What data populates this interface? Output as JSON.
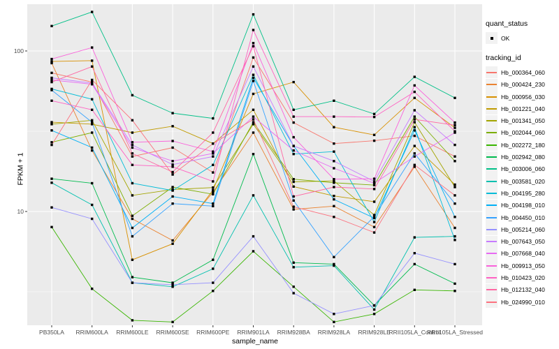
{
  "figure": {
    "background": "#FFFFFF",
    "panel_background": "#EBEBEB",
    "gridline_color": "#FFFFFF",
    "tick_color": "#333333",
    "tick_label_color": "#4D4D4D",
    "point_color": "#000000"
  },
  "axes": {
    "y_title": "FPKM + 1",
    "x_title": "sample_name",
    "y_tick_labels": [
      "100",
      "10"
    ]
  },
  "legend": {
    "quant_title": "quant_status",
    "quant_entries": [
      {
        "label": "OK",
        "symbol": "point-icon",
        "color": "#000000"
      }
    ],
    "tracking_title": "tracking_id"
  },
  "chart_data": {
    "type": "line",
    "title": "",
    "xlabel": "sample_name",
    "ylabel": "FPKM + 1",
    "y_scale": "log10",
    "ylim": [
      1.9,
      200
    ],
    "y_major_ticks": [
      10,
      100
    ],
    "y_minor_ticks": [
      3.162,
      31.623
    ],
    "grid": true,
    "legend_position": "right",
    "point_shape": "square",
    "point_color": "#000000",
    "categories": [
      "PB350LA",
      "RRIM600LA",
      "RRIM600LE",
      "RRIM600SE",
      "RRIM600PE",
      "RRIM901LA",
      "RRIM928BA",
      "RRIM928LA",
      "RRIM928LE",
      "RRII105LA_Control",
      "RRII105LA_Stressed"
    ],
    "series": [
      {
        "name": "Hb_000364_060",
        "color": "#F8766D",
        "values": [
          73,
          64,
          22,
          25,
          17.5,
          91,
          35.8,
          26.5,
          27.6,
          29.6,
          22
        ]
      },
      {
        "name": "Hb_000424_230",
        "color": "#EA8331",
        "values": [
          84,
          24,
          9.0,
          6.6,
          13.2,
          31,
          10.3,
          10.8,
          8.0,
          19,
          7.9
        ]
      },
      {
        "name": "Hb_000956_030",
        "color": "#D89000",
        "values": [
          86,
          87,
          5.0,
          6.3,
          13.6,
          54,
          64,
          33.5,
          30,
          51,
          33.2
        ]
      },
      {
        "name": "Hb_001221_040",
        "color": "#C09B00",
        "values": [
          36,
          35,
          31,
          34,
          26.5,
          43,
          14.3,
          12.5,
          11.5,
          25.6,
          14.7
        ]
      },
      {
        "name": "Hb_001341_050",
        "color": "#A3A500",
        "values": [
          35,
          37,
          12.6,
          13.7,
          14.1,
          35,
          15.3,
          15.5,
          9.5,
          36,
          14.2
        ]
      },
      {
        "name": "Hb_002044_060",
        "color": "#7CAE00",
        "values": [
          27,
          31,
          9.4,
          14.2,
          12.8,
          36,
          15.9,
          15.1,
          14.6,
          39,
          20.6
        ]
      },
      {
        "name": "Hb_002272_180",
        "color": "#39B600",
        "values": [
          8,
          3.3,
          2.1,
          2.05,
          3.2,
          5.65,
          3.4,
          2.05,
          2.3,
          3.25,
          3.2
        ]
      },
      {
        "name": "Hb_002942_080",
        "color": "#00BB4E",
        "values": [
          16,
          15,
          3.9,
          3.6,
          5.0,
          22.8,
          4.8,
          4.7,
          2.6,
          4.7,
          3.55
        ]
      },
      {
        "name": "Hb_003006_060",
        "color": "#00C087",
        "values": [
          143,
          175,
          53,
          41,
          38,
          169,
          43,
          49,
          40.5,
          69,
          51
        ]
      },
      {
        "name": "Hb_003581_020",
        "color": "#00C0AF",
        "values": [
          15.1,
          11,
          3.6,
          3.4,
          4.4,
          12.6,
          4.5,
          4.6,
          2.45,
          6.9,
          7.0
        ]
      },
      {
        "name": "Hb_004195_280",
        "color": "#00BCD8",
        "values": [
          58,
          50,
          15,
          13.5,
          19.5,
          71,
          22.8,
          23.6,
          8.6,
          33.5,
          6.65
        ]
      },
      {
        "name": "Hb_004198_010",
        "color": "#00B0F6",
        "values": [
          32,
          25,
          7.9,
          12.4,
          11.2,
          68,
          25.6,
          11.9,
          9.1,
          32,
          9.25
        ]
      },
      {
        "name": "Hb_004450_010",
        "color": "#35A2FF",
        "values": [
          57,
          36,
          7.0,
          11.2,
          10.8,
          65,
          11.7,
          5.2,
          9.3,
          23,
          11.2
        ]
      },
      {
        "name": "Hb_005214_060",
        "color": "#9590FF",
        "values": [
          10.6,
          9,
          3.6,
          3.5,
          3.6,
          7.0,
          3.1,
          2.3,
          2.6,
          5.5,
          4.7
        ]
      },
      {
        "name": "Hb_007643_050",
        "color": "#C77CFF",
        "values": [
          68,
          63,
          26,
          19.6,
          22,
          80,
          25.6,
          20.6,
          15.4,
          42.7,
          26
        ]
      },
      {
        "name": "Hb_007668_040",
        "color": "#E76BF3",
        "values": [
          66,
          62,
          25,
          20.6,
          23,
          39,
          24,
          18.6,
          15,
          22,
          31
        ]
      },
      {
        "name": "Hb_009913_050",
        "color": "#FA62DB",
        "values": [
          89,
          105,
          27,
          27.5,
          23.6,
          112,
          29,
          15.9,
          16,
          61,
          35.8
        ]
      },
      {
        "name": "Hb_010423_020",
        "color": "#FF61C3",
        "values": [
          49,
          43,
          19.5,
          19,
          15.4,
          135,
          39,
          39,
          38.8,
          55.6,
          31.6
        ]
      },
      {
        "name": "Hb_012132_040",
        "color": "#FF67A4",
        "values": [
          64,
          80,
          23,
          17.6,
          31,
          107,
          12.4,
          14.2,
          13.8,
          37.5,
          34.5
        ]
      },
      {
        "name": "Hb_024990_010",
        "color": "#FC717F",
        "values": [
          26,
          66,
          37,
          17,
          26.5,
          37.5,
          10.7,
          9.25,
          7.4,
          19.5,
          12.6
        ]
      }
    ]
  }
}
